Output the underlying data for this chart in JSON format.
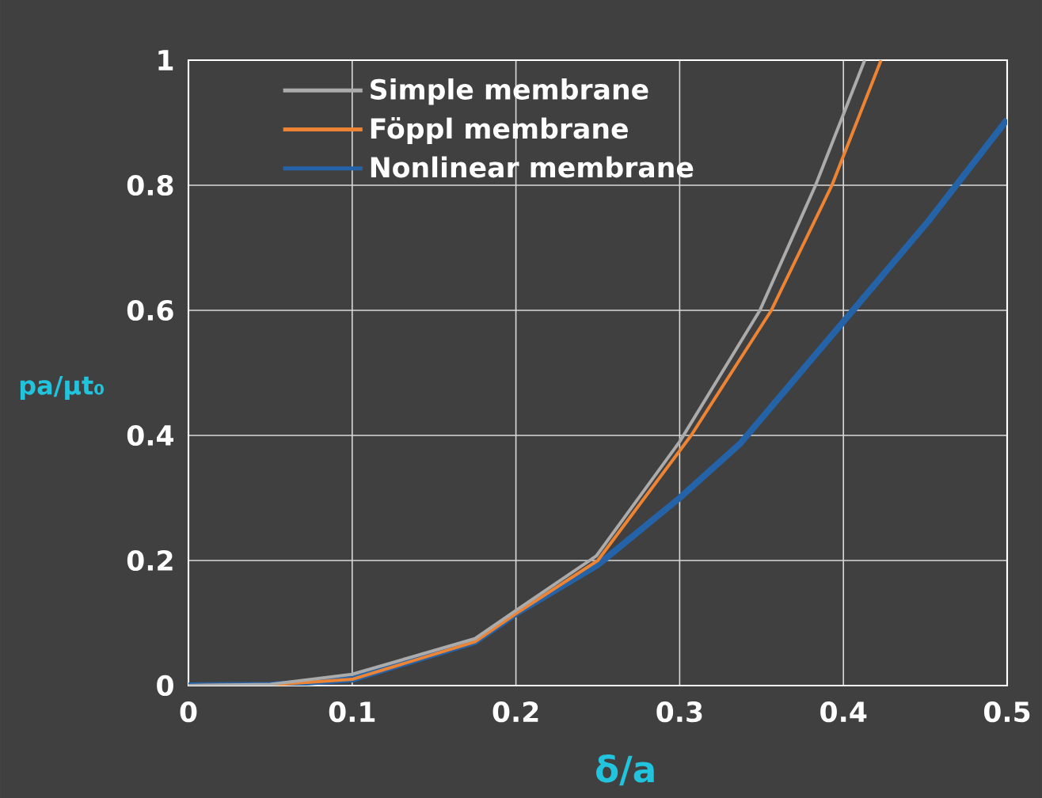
{
  "chart_data": {
    "type": "line",
    "xlabel": "δ/a",
    "ylabel": "pa/μt₀",
    "series": [
      {
        "name": "Simple membrane",
        "color": "#ababab",
        "x": [
          0,
          0.05,
          0.1,
          0.175,
          0.2,
          0.249,
          0.3,
          0.349,
          0.383,
          0.413
        ],
        "values": [
          0,
          0.002,
          0.018,
          0.075,
          0.12,
          0.207,
          0.39,
          0.6,
          0.8,
          1.0
        ]
      },
      {
        "name": "Föppl membrane",
        "color": "#ed8434",
        "x": [
          0,
          0.05,
          0.1,
          0.175,
          0.2,
          0.25,
          0.307,
          0.356,
          0.393,
          0.423
        ],
        "values": [
          0,
          0.001,
          0.01,
          0.07,
          0.115,
          0.2,
          0.4,
          0.6,
          0.8,
          1.0
        ]
      },
      {
        "name": "Nonlinear membrane",
        "color": "#2563a8",
        "x": [
          0,
          0.05,
          0.1,
          0.175,
          0.2,
          0.25,
          0.3,
          0.337,
          0.401,
          0.452,
          0.5
        ],
        "values": [
          0,
          0.001,
          0.01,
          0.07,
          0.115,
          0.193,
          0.3,
          0.387,
          0.585,
          0.743,
          0.905
        ]
      }
    ],
    "xlim": [
      0,
      0.5
    ],
    "ylim": [
      0,
      1
    ],
    "xticks": [
      0,
      0.1,
      0.2,
      0.3,
      0.4,
      0.5
    ],
    "yticks": [
      0,
      0.2,
      0.4,
      0.6,
      0.8,
      1
    ],
    "grid": true,
    "legend": "top left",
    "marker": "none",
    "line_style": "solid"
  }
}
